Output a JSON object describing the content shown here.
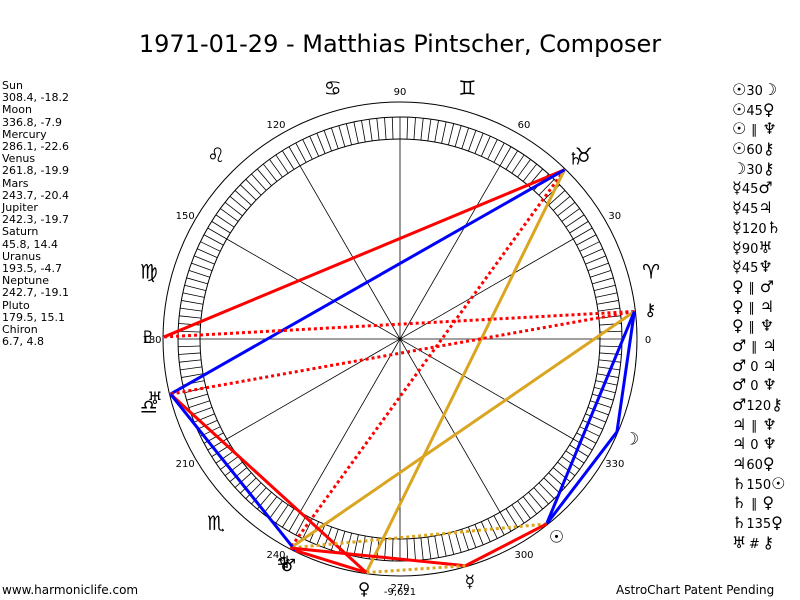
{
  "title": "1971-01-29 - Matthias Pintscher, Composer",
  "planets": [
    {
      "name": "Sun",
      "glyph": "☉",
      "coords": "308.4, -18.2",
      "lon": 308.4
    },
    {
      "name": "Moon",
      "glyph": "☽",
      "coords": "336.8, -7.9",
      "lon": 336.8
    },
    {
      "name": "Mercury",
      "glyph": "☿",
      "coords": "286.1, -22.6",
      "lon": 286.1
    },
    {
      "name": "Venus",
      "glyph": "♀",
      "coords": "261.8, -19.9",
      "lon": 261.8
    },
    {
      "name": "Mars",
      "glyph": "♂",
      "coords": "243.7, -20.4",
      "lon": 243.7
    },
    {
      "name": "Jupiter",
      "glyph": "♃",
      "coords": "242.3, -19.7",
      "lon": 242.3
    },
    {
      "name": "Saturn",
      "glyph": "♄",
      "coords": "45.8, 14.4",
      "lon": 45.8
    },
    {
      "name": "Uranus",
      "glyph": "♅",
      "coords": "193.5, -4.7",
      "lon": 193.5
    },
    {
      "name": "Neptune",
      "glyph": "♆",
      "coords": "242.7, -19.1",
      "lon": 242.7
    },
    {
      "name": "Pluto",
      "glyph": "♇",
      "coords": "179.5, 15.1",
      "lon": 179.5
    },
    {
      "name": "Chiron",
      "glyph": "⚷",
      "coords": "6.7, 4.8",
      "lon": 6.7
    }
  ],
  "wheel": {
    "degree_labels": [
      {
        "text": "0",
        "deg": 0
      },
      {
        "text": "30",
        "deg": 30
      },
      {
        "text": "60",
        "deg": 60
      },
      {
        "text": "90",
        "deg": 90
      },
      {
        "text": "120",
        "deg": 120
      },
      {
        "text": "150",
        "deg": 150
      },
      {
        "text": "180",
        "deg": 180
      },
      {
        "text": "210",
        "deg": 210
      },
      {
        "text": "240",
        "deg": 240
      },
      {
        "text": "270",
        "deg": 270
      },
      {
        "text": "300",
        "deg": 300
      },
      {
        "text": "330",
        "deg": 330
      }
    ],
    "signs": [
      {
        "glyph": "♈",
        "deg": 15
      },
      {
        "glyph": "♉",
        "deg": 45
      },
      {
        "glyph": "♊",
        "deg": 75
      },
      {
        "glyph": "♋",
        "deg": 105
      },
      {
        "glyph": "♌",
        "deg": 135
      },
      {
        "glyph": "♍",
        "deg": 165
      },
      {
        "glyph": "♎",
        "deg": 195
      },
      {
        "glyph": "♏",
        "deg": 225
      }
    ],
    "extra_label": "-9,621",
    "colors": {
      "opposition": "#ff0000",
      "trine": "#0000ff",
      "square": "#daa520"
    }
  },
  "aspect_lines": [
    {
      "from": 45.8,
      "to": 179.5,
      "color": "#ff0000",
      "style": "solid"
    },
    {
      "from": 45.8,
      "to": 242.3,
      "color": "#ff0000",
      "style": "dotted"
    },
    {
      "from": 45.8,
      "to": 261.8,
      "color": "#daa520",
      "style": "solid"
    },
    {
      "from": 45.8,
      "to": 193.5,
      "color": "#0000ff",
      "style": "solid"
    },
    {
      "from": 6.7,
      "to": 179.5,
      "color": "#ff0000",
      "style": "dotted"
    },
    {
      "from": 6.7,
      "to": 193.5,
      "color": "#ff0000",
      "style": "dotted"
    },
    {
      "from": 6.7,
      "to": 242.3,
      "color": "#daa520",
      "style": "solid"
    },
    {
      "from": 6.7,
      "to": 308.4,
      "color": "#0000ff",
      "style": "solid"
    },
    {
      "from": 6.7,
      "to": 336.8,
      "color": "#0000ff",
      "style": "solid"
    },
    {
      "from": 336.8,
      "to": 308.4,
      "color": "#0000ff",
      "style": "solid"
    },
    {
      "from": 193.5,
      "to": 261.8,
      "color": "#ff0000",
      "style": "solid"
    },
    {
      "from": 193.5,
      "to": 243.7,
      "color": "#0000ff",
      "style": "solid"
    },
    {
      "from": 308.4,
      "to": 242.3,
      "color": "#daa520",
      "style": "dotted"
    },
    {
      "from": 308.4,
      "to": 286.1,
      "color": "#ff0000",
      "style": "solid"
    },
    {
      "from": 286.1,
      "to": 242.3,
      "color": "#ff0000",
      "style": "solid"
    },
    {
      "from": 286.1,
      "to": 261.8,
      "color": "#daa520",
      "style": "dotted"
    },
    {
      "from": 261.8,
      "to": 243.7,
      "color": "#ff0000",
      "style": "solid"
    }
  ],
  "aspects": [
    {
      "a": "☉",
      "sym": "30",
      "b": "☽"
    },
    {
      "a": "☉",
      "sym": "45",
      "b": "♀"
    },
    {
      "a": "☉",
      "sym": "∥",
      "b": "♆"
    },
    {
      "a": "☉",
      "sym": "60",
      "b": "⚷"
    },
    {
      "a": "☽",
      "sym": "30",
      "b": "⚷"
    },
    {
      "a": "☿",
      "sym": "45",
      "b": "♂"
    },
    {
      "a": "☿",
      "sym": "45",
      "b": "♃"
    },
    {
      "a": "☿",
      "sym": "120",
      "b": "♄"
    },
    {
      "a": "☿",
      "sym": "90",
      "b": "♅"
    },
    {
      "a": "☿",
      "sym": "45",
      "b": "♆"
    },
    {
      "a": "♀",
      "sym": "∥",
      "b": "♂"
    },
    {
      "a": "♀",
      "sym": "∥",
      "b": "♃"
    },
    {
      "a": "♀",
      "sym": "∥",
      "b": "♆"
    },
    {
      "a": "♂",
      "sym": "∥",
      "b": "♃"
    },
    {
      "a": "♂",
      "sym": "0",
      "b": "♃"
    },
    {
      "a": "♂",
      "sym": "0",
      "b": "♆"
    },
    {
      "a": "♂",
      "sym": "120",
      "b": "⚷"
    },
    {
      "a": "♃",
      "sym": "∥",
      "b": "♆"
    },
    {
      "a": "♃",
      "sym": "0",
      "b": "♆"
    },
    {
      "a": "♃",
      "sym": "60",
      "b": "♀"
    },
    {
      "a": "♄",
      "sym": "150",
      "b": "☉"
    },
    {
      "a": "♄",
      "sym": "∥",
      "b": "♀"
    },
    {
      "a": "♄",
      "sym": "135",
      "b": "♀"
    },
    {
      "a": "♅",
      "sym": "#",
      "b": "⚷"
    }
  ],
  "footer": {
    "left": "www.harmoniclife.com",
    "right": "AstroChart Patent Pending"
  }
}
